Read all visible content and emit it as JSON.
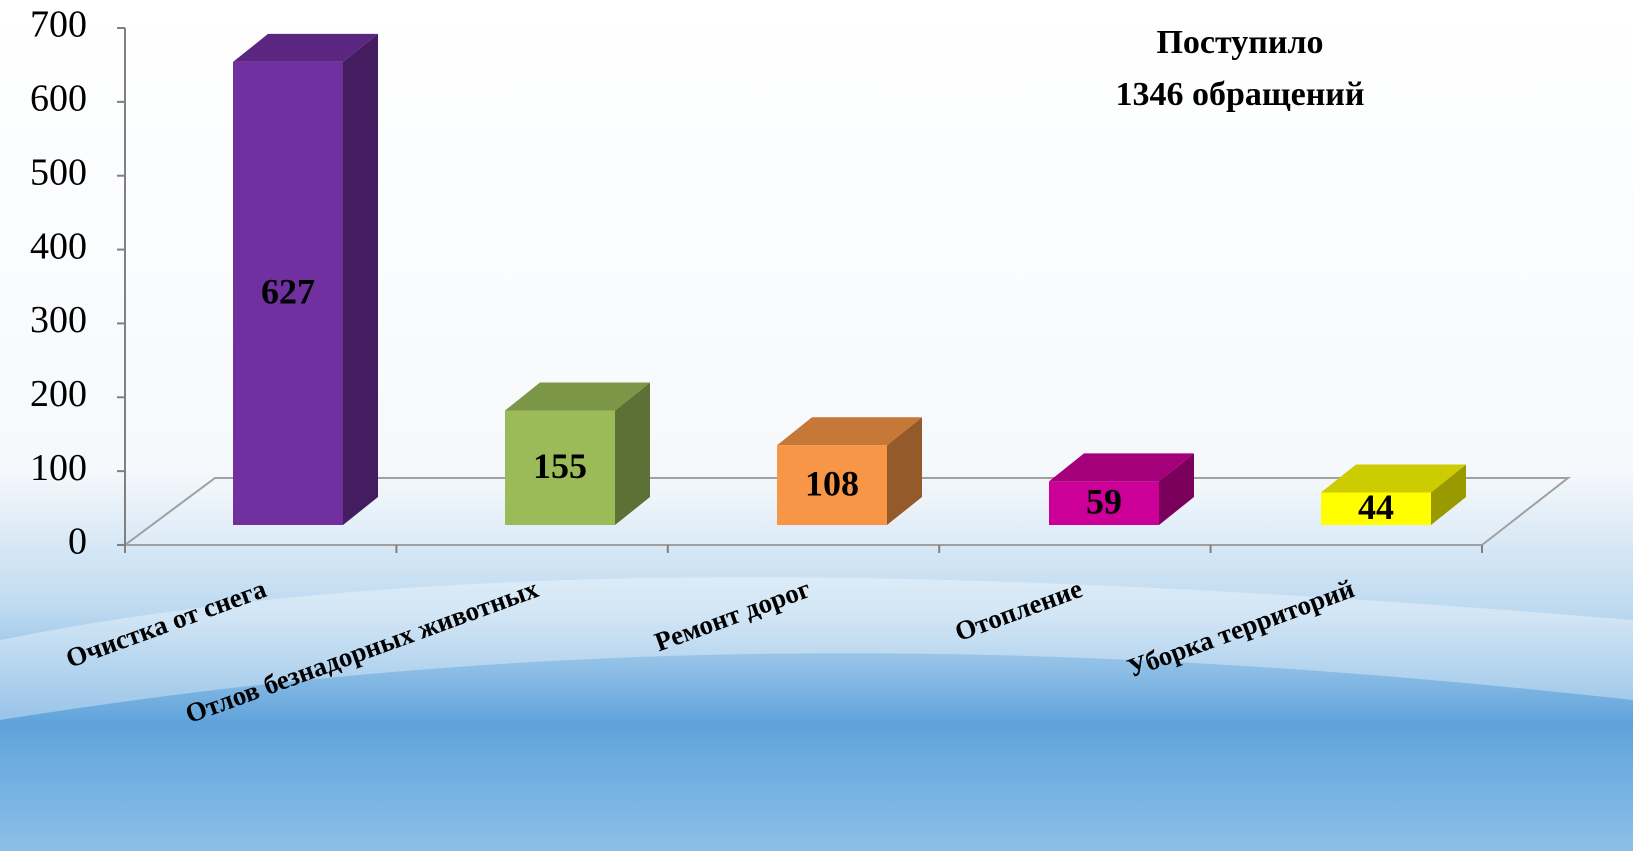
{
  "chart_data": {
    "type": "bar3d",
    "annotation": [
      "Поступило",
      "1346 обращений"
    ],
    "categories": [
      "Очистка от снега",
      "Отлов безнадорных животных",
      "Ремонт дорог",
      "Отопление",
      "Уборка территорий"
    ],
    "values": [
      627,
      155,
      108,
      59,
      44
    ],
    "colors": [
      "#7030a0",
      "#9bbb59",
      "#f79646",
      "#cc0099",
      "#ffff00"
    ],
    "ylim": [
      0,
      700
    ],
    "yticks": [
      0,
      100,
      200,
      300,
      400,
      500,
      600,
      700
    ]
  }
}
